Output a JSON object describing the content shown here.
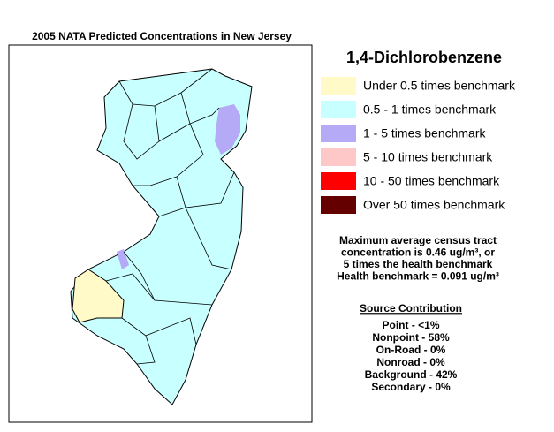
{
  "title": "2005 NATA Predicted Concentrations in New Jersey",
  "pollutant": "1,4-Dichlorobenzene",
  "legend": [
    {
      "label": "Under 0.5 times benchmark",
      "color": "#fffac8"
    },
    {
      "label": "0.5 - 1 times benchmark",
      "color": "#c8ffff"
    },
    {
      "label": "1 - 5 times benchmark",
      "color": "#b4aaf5"
    },
    {
      "label": "5 - 10 times benchmark",
      "color": "#ffc8c8"
    },
    {
      "label": "10 - 50 times benchmark",
      "color": "#ff0000"
    },
    {
      "label": "Over 50 times benchmark",
      "color": "#640000"
    }
  ],
  "note": [
    "Maximum average census tract",
    "concentration is 0.46 ug/m³, or",
    "5 times the health benchmark",
    "Health benchmark = 0.091 ug/m³"
  ],
  "source": {
    "heading": "Source Contribution",
    "lines": [
      "Point - <1%",
      "Nonpoint - 58%",
      "On-Road - 0%",
      "Nonroad - 0%",
      "Background - 42%",
      "Secondary - 0%"
    ]
  }
}
